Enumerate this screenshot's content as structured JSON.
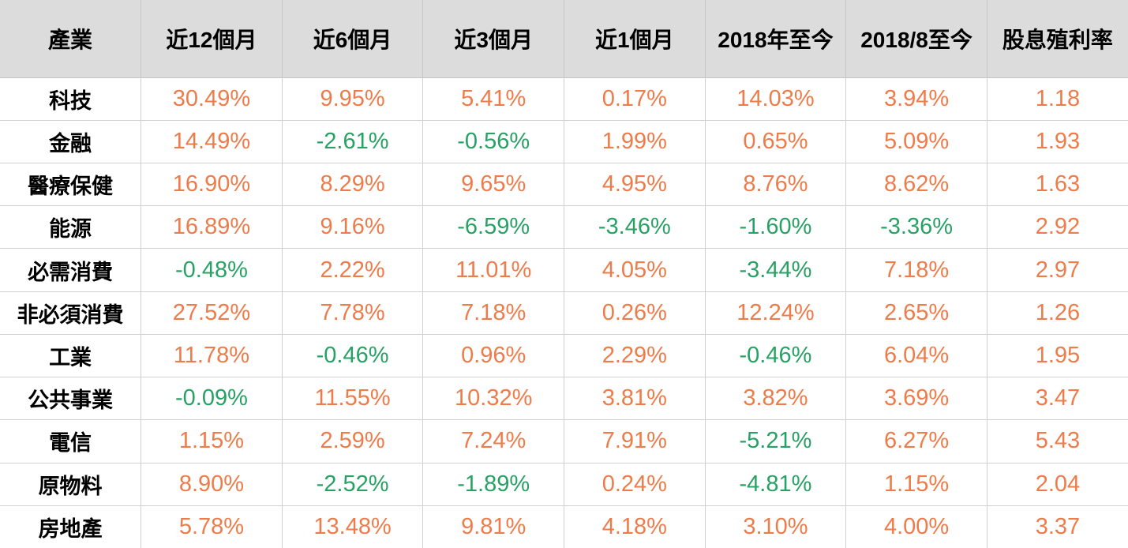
{
  "chart_data": {
    "type": "table",
    "columns": [
      "產業",
      "近12個月",
      "近6個月",
      "近3個月",
      "近1個月",
      "2018年至今",
      "2018/8至今",
      "股息殖利率"
    ],
    "rows": [
      {
        "label": "科技",
        "values": [
          "30.49%",
          "9.95%",
          "5.41%",
          "0.17%",
          "14.03%",
          "3.94%",
          "1.18"
        ]
      },
      {
        "label": "金融",
        "values": [
          "14.49%",
          "-2.61%",
          "-0.56%",
          "1.99%",
          "0.65%",
          "5.09%",
          "1.93"
        ]
      },
      {
        "label": "醫療保健",
        "values": [
          "16.90%",
          "8.29%",
          "9.65%",
          "4.95%",
          "8.76%",
          "8.62%",
          "1.63"
        ]
      },
      {
        "label": "能源",
        "values": [
          "16.89%",
          "9.16%",
          "-6.59%",
          "-3.46%",
          "-1.60%",
          "-3.36%",
          "2.92"
        ]
      },
      {
        "label": "必需消費",
        "values": [
          "-0.48%",
          "2.22%",
          "11.01%",
          "4.05%",
          "-3.44%",
          "7.18%",
          "2.97"
        ]
      },
      {
        "label": "非必須消費",
        "values": [
          "27.52%",
          "7.78%",
          "7.18%",
          "0.26%",
          "12.24%",
          "2.65%",
          "1.26"
        ]
      },
      {
        "label": "工業",
        "values": [
          "11.78%",
          "-0.46%",
          "0.96%",
          "2.29%",
          "-0.46%",
          "6.04%",
          "1.95"
        ]
      },
      {
        "label": "公共事業",
        "values": [
          "-0.09%",
          "11.55%",
          "10.32%",
          "3.81%",
          "3.82%",
          "3.69%",
          "3.47"
        ]
      },
      {
        "label": "電信",
        "values": [
          "1.15%",
          "2.59%",
          "7.24%",
          "7.91%",
          "-5.21%",
          "6.27%",
          "5.43"
        ]
      },
      {
        "label": "原物料",
        "values": [
          "8.90%",
          "-2.52%",
          "-1.89%",
          "0.24%",
          "-4.81%",
          "1.15%",
          "2.04"
        ]
      },
      {
        "label": "房地產",
        "values": [
          "5.78%",
          "13.48%",
          "9.81%",
          "4.18%",
          "3.10%",
          "4.00%",
          "3.37"
        ]
      }
    ]
  },
  "colors": {
    "positive": "#ED7C4A",
    "negative": "#28A164",
    "header_bg": "#DCDCDC",
    "header_gridline": "#C6C6C6",
    "gridline": "#D0D0D0",
    "label_text": "#000000"
  }
}
